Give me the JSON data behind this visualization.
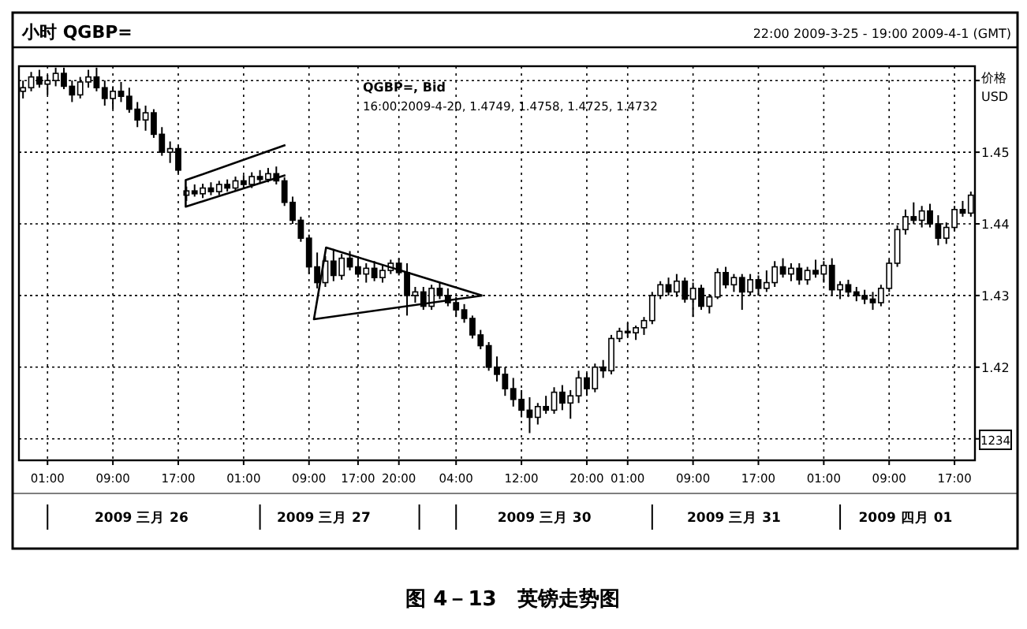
{
  "chart_data": {
    "type": "candlestick",
    "title": "小时 QGBP=",
    "subtitle": "22:00 2009-3-25 - 19:00 2009-4-1 (GMT)",
    "ylabel": "价格 USD",
    "color": "#000000",
    "grid": true,
    "ylim": [
      1.407,
      1.462
    ],
    "yticks": [
      {
        "value": 1.41,
        "label": null
      },
      1.42,
      1.43,
      1.44,
      1.45,
      {
        "value": 1.46,
        "label": null
      }
    ],
    "annotations": [
      "QGBP=, Bid",
      "16:00 2009-4-20, 1.4749, 1.4758, 1.4725, 1.4732",
      "2009 三月 26",
      "2009 三月 27",
      "2009 三月 30",
      "2009 三月 31",
      "2009 四月 01",
      "1234",
      "图 4－13　英镑走势图"
    ],
    "categories": [
      null,
      null,
      null,
      "01:00",
      null,
      null,
      null,
      null,
      null,
      null,
      null,
      "09:00",
      null,
      null,
      null,
      null,
      null,
      null,
      null,
      "17:00",
      null,
      null,
      null,
      null,
      null,
      null,
      null,
      "01:00",
      null,
      null,
      null,
      null,
      null,
      null,
      null,
      "09:00",
      null,
      null,
      null,
      null,
      null,
      "17:00",
      null,
      null,
      null,
      null,
      "20:00",
      null,
      null,
      null,
      null,
      null,
      null,
      "04:00",
      null,
      null,
      null,
      null,
      null,
      null,
      null,
      "12:00",
      null,
      null,
      null,
      null,
      null,
      null,
      null,
      "20:00",
      null,
      null,
      null,
      null,
      "01:00",
      null,
      null,
      null,
      null,
      null,
      null,
      null,
      "09:00",
      null,
      null,
      null,
      null,
      null,
      null,
      null,
      "17:00",
      null,
      null,
      null,
      null,
      null,
      null,
      null,
      "01:00",
      null,
      null,
      null,
      null,
      null,
      null,
      null,
      "09:00",
      null,
      null,
      null,
      null,
      null,
      null,
      null,
      "17:00",
      null,
      null
    ],
    "ohlc": [
      [
        1.4585,
        1.46,
        1.4575,
        1.459
      ],
      [
        1.459,
        1.4612,
        1.4585,
        1.4605
      ],
      [
        1.4605,
        1.4615,
        1.459,
        1.4595
      ],
      [
        1.4595,
        1.4608,
        1.458,
        1.46
      ],
      [
        1.46,
        1.4618,
        1.4592,
        1.461
      ],
      [
        1.461,
        1.4618,
        1.4588,
        1.4592
      ],
      [
        1.4592,
        1.46,
        1.457,
        1.458
      ],
      [
        1.458,
        1.4605,
        1.4575,
        1.4598
      ],
      [
        1.4598,
        1.4615,
        1.459,
        1.4605
      ],
      [
        1.4605,
        1.4618,
        1.4585,
        1.459
      ],
      [
        1.459,
        1.46,
        1.4565,
        1.4575
      ],
      [
        1.4575,
        1.4592,
        1.456,
        1.4585
      ],
      [
        1.4585,
        1.4598,
        1.457,
        1.4578
      ],
      [
        1.4578,
        1.459,
        1.4555,
        1.456
      ],
      [
        1.456,
        1.457,
        1.4535,
        1.4545
      ],
      [
        1.4545,
        1.4565,
        1.453,
        1.4555
      ],
      [
        1.4555,
        1.456,
        1.452,
        1.4525
      ],
      [
        1.4525,
        1.4535,
        1.4495,
        1.45
      ],
      [
        1.45,
        1.4515,
        1.4485,
        1.4505
      ],
      [
        1.4505,
        1.451,
        1.447,
        1.4475
      ],
      [
        1.444,
        1.4452,
        1.4432,
        1.4446
      ],
      [
        1.4446,
        1.4455,
        1.4438,
        1.4442
      ],
      [
        1.4442,
        1.4456,
        1.4436,
        1.445
      ],
      [
        1.445,
        1.4458,
        1.444,
        1.4445
      ],
      [
        1.4445,
        1.446,
        1.444,
        1.4455
      ],
      [
        1.4455,
        1.4462,
        1.4445,
        1.445
      ],
      [
        1.445,
        1.4466,
        1.4446,
        1.446
      ],
      [
        1.446,
        1.4468,
        1.445,
        1.4455
      ],
      [
        1.4455,
        1.4472,
        1.445,
        1.4466
      ],
      [
        1.4466,
        1.4475,
        1.4456,
        1.4462
      ],
      [
        1.4462,
        1.4478,
        1.4458,
        1.447
      ],
      [
        1.447,
        1.448,
        1.4455,
        1.446
      ],
      [
        1.446,
        1.4465,
        1.4425,
        1.443
      ],
      [
        1.443,
        1.4438,
        1.44,
        1.4405
      ],
      [
        1.4405,
        1.441,
        1.4375,
        1.438
      ],
      [
        1.438,
        1.4385,
        1.433,
        1.434
      ],
      [
        1.434,
        1.436,
        1.431,
        1.4318
      ],
      [
        1.4318,
        1.4355,
        1.4312,
        1.4348
      ],
      [
        1.4348,
        1.4365,
        1.432,
        1.4328
      ],
      [
        1.4328,
        1.4358,
        1.4322,
        1.4352
      ],
      [
        1.4352,
        1.4362,
        1.4335,
        1.434
      ],
      [
        1.434,
        1.4355,
        1.4325,
        1.433
      ],
      [
        1.433,
        1.4345,
        1.4318,
        1.4338
      ],
      [
        1.4338,
        1.4348,
        1.432,
        1.4325
      ],
      [
        1.4325,
        1.4342,
        1.4318,
        1.4335
      ],
      [
        1.4335,
        1.435,
        1.433,
        1.4345
      ],
      [
        1.4345,
        1.4352,
        1.4328,
        1.4332
      ],
      [
        1.4332,
        1.4345,
        1.4272,
        1.43
      ],
      [
        1.43,
        1.4312,
        1.429,
        1.4305
      ],
      [
        1.4305,
        1.4312,
        1.428,
        1.4285
      ],
      [
        1.4285,
        1.4315,
        1.428,
        1.431
      ],
      [
        1.431,
        1.4318,
        1.4295,
        1.43
      ],
      [
        1.43,
        1.431,
        1.4285,
        1.429
      ],
      [
        1.429,
        1.4298,
        1.427,
        1.428
      ],
      [
        1.428,
        1.4288,
        1.4262,
        1.4268
      ],
      [
        1.4268,
        1.4272,
        1.424,
        1.4245
      ],
      [
        1.4245,
        1.4252,
        1.4225,
        1.423
      ],
      [
        1.423,
        1.4235,
        1.4195,
        1.42
      ],
      [
        1.42,
        1.4215,
        1.418,
        1.419
      ],
      [
        1.419,
        1.42,
        1.416,
        1.417
      ],
      [
        1.417,
        1.4185,
        1.4145,
        1.4155
      ],
      [
        1.4155,
        1.4168,
        1.413,
        1.414
      ],
      [
        1.414,
        1.4158,
        1.4108,
        1.413
      ],
      [
        1.413,
        1.415,
        1.412,
        1.4145
      ],
      [
        1.4145,
        1.416,
        1.4135,
        1.414
      ],
      [
        1.414,
        1.4172,
        1.4135,
        1.4165
      ],
      [
        1.4165,
        1.4175,
        1.414,
        1.415
      ],
      [
        1.415,
        1.4168,
        1.4128,
        1.416
      ],
      [
        1.416,
        1.4195,
        1.415,
        1.4185
      ],
      [
        1.4185,
        1.4192,
        1.416,
        1.417
      ],
      [
        1.417,
        1.4205,
        1.4165,
        1.42
      ],
      [
        1.42,
        1.421,
        1.4185,
        1.4195
      ],
      [
        1.4195,
        1.4245,
        1.419,
        1.424
      ],
      [
        1.424,
        1.4255,
        1.4235,
        1.425
      ],
      [
        1.425,
        1.4262,
        1.4242,
        1.4248
      ],
      [
        1.4248,
        1.4258,
        1.4238,
        1.4255
      ],
      [
        1.4255,
        1.427,
        1.4245,
        1.4265
      ],
      [
        1.4265,
        1.4305,
        1.426,
        1.43
      ],
      [
        1.43,
        1.432,
        1.4295,
        1.4315
      ],
      [
        1.4315,
        1.4325,
        1.43,
        1.4305
      ],
      [
        1.4305,
        1.433,
        1.4298,
        1.432
      ],
      [
        1.432,
        1.4325,
        1.429,
        1.4295
      ],
      [
        1.4295,
        1.4318,
        1.427,
        1.431
      ],
      [
        1.431,
        1.4315,
        1.428,
        1.4285
      ],
      [
        1.4285,
        1.4302,
        1.4275,
        1.4298
      ],
      [
        1.4298,
        1.4338,
        1.4295,
        1.4332
      ],
      [
        1.4332,
        1.434,
        1.431,
        1.4315
      ],
      [
        1.4315,
        1.433,
        1.4305,
        1.4325
      ],
      [
        1.4325,
        1.433,
        1.428,
        1.4305
      ],
      [
        1.4305,
        1.433,
        1.43,
        1.4322
      ],
      [
        1.4322,
        1.4328,
        1.43,
        1.431
      ],
      [
        1.431,
        1.4335,
        1.4305,
        1.4318
      ],
      [
        1.4318,
        1.4348,
        1.4312,
        1.434
      ],
      [
        1.434,
        1.4352,
        1.4325,
        1.433
      ],
      [
        1.433,
        1.4345,
        1.432,
        1.4338
      ],
      [
        1.4338,
        1.4345,
        1.4315,
        1.4322
      ],
      [
        1.4322,
        1.434,
        1.4315,
        1.4335
      ],
      [
        1.4335,
        1.435,
        1.4325,
        1.433
      ],
      [
        1.433,
        1.4348,
        1.4318,
        1.4342
      ],
      [
        1.4342,
        1.4352,
        1.43,
        1.4308
      ],
      [
        1.4308,
        1.432,
        1.4295,
        1.4315
      ],
      [
        1.4315,
        1.4322,
        1.4298,
        1.4305
      ],
      [
        1.4305,
        1.4312,
        1.4292,
        1.43
      ],
      [
        1.43,
        1.4308,
        1.4288,
        1.4295
      ],
      [
        1.4295,
        1.4305,
        1.428,
        1.429
      ],
      [
        1.429,
        1.4315,
        1.4285,
        1.431
      ],
      [
        1.431,
        1.435,
        1.4305,
        1.4345
      ],
      [
        1.4345,
        1.4398,
        1.434,
        1.4392
      ],
      [
        1.4392,
        1.442,
        1.4385,
        1.441
      ],
      [
        1.441,
        1.443,
        1.44,
        1.4405
      ],
      [
        1.4405,
        1.4425,
        1.4395,
        1.4418
      ],
      [
        1.4418,
        1.4428,
        1.4395,
        1.44
      ],
      [
        1.44,
        1.4412,
        1.437,
        1.438
      ],
      [
        1.438,
        1.4402,
        1.4372,
        1.4395
      ],
      [
        1.4395,
        1.4425,
        1.439,
        1.442
      ],
      [
        1.442,
        1.4432,
        1.441,
        1.4415
      ],
      [
        1.4415,
        1.4445,
        1.441,
        1.444
      ]
    ]
  }
}
